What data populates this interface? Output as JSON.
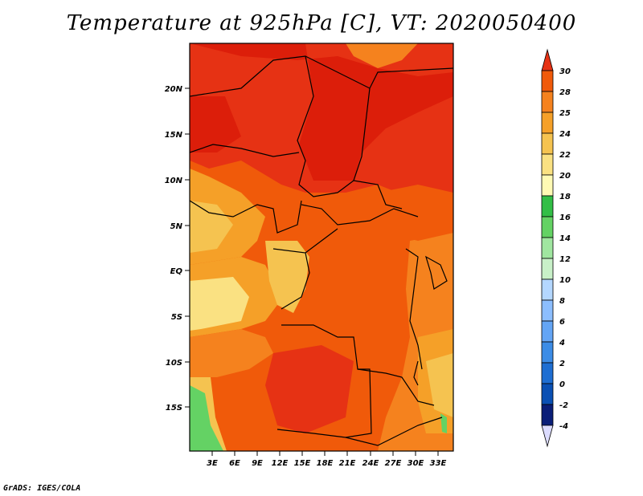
{
  "title": "Temperature at 925hPa [C], VT: 2020050400",
  "footer": "GrADS: IGES/COLA",
  "map": {
    "lat_ticks": [
      "20N",
      "15N",
      "10N",
      "5N",
      "EQ",
      "5S",
      "10S",
      "15S"
    ],
    "lon_ticks": [
      "3E",
      "6E",
      "9E",
      "12E",
      "15E",
      "18E",
      "21E",
      "24E",
      "27E",
      "30E",
      "33E"
    ]
  },
  "colorbar": {
    "labels": [
      "30",
      "28",
      "25",
      "24",
      "22",
      "20",
      "18",
      "16",
      "14",
      "12",
      "10",
      "8",
      "6",
      "4",
      "2",
      "0",
      "-2",
      "-4"
    ],
    "colors": [
      "#e63214",
      "#f05a0a",
      "#f5821e",
      "#f5a028",
      "#f5c350",
      "#fae182",
      "#fffab4",
      "#32be46",
      "#64d264",
      "#a0e6a0",
      "#c8f0c8",
      "#b4d7ff",
      "#8cbeff",
      "#64a5f5",
      "#3c8ce6",
      "#1e6ed2",
      "#0a50b4",
      "#0a1e78",
      "#dcdcff"
    ]
  },
  "colors": {
    "hot": "#dc1e0a",
    "very_warm": "#e63214",
    "warm": "#f05a0a",
    "orange": "#f5821e",
    "light_orange": "#f5a028",
    "gold": "#f5c350",
    "pale": "#fae182",
    "green": "#64d264"
  }
}
